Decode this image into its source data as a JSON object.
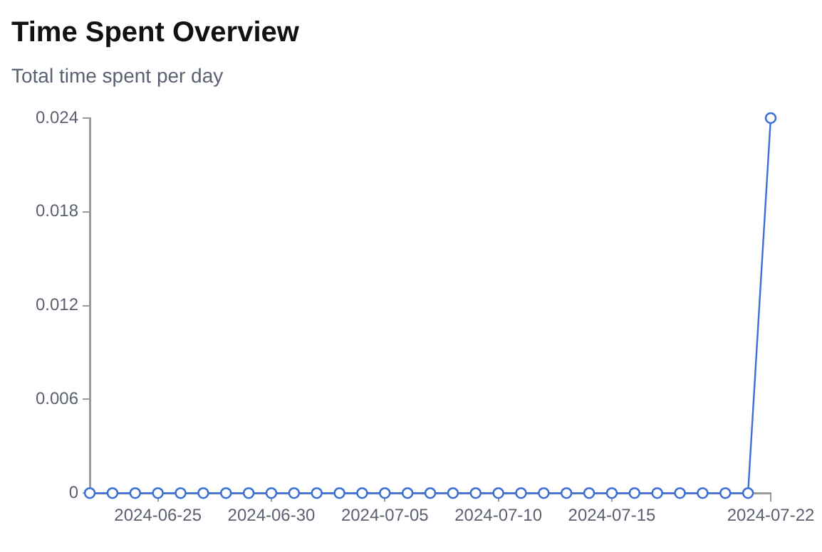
{
  "chart_data": {
    "type": "line",
    "title": "Time Spent Overview",
    "subtitle": "Total time spent per day",
    "x": [
      "2024-06-22",
      "2024-06-23",
      "2024-06-24",
      "2024-06-25",
      "2024-06-26",
      "2024-06-27",
      "2024-06-28",
      "2024-06-29",
      "2024-06-30",
      "2024-07-01",
      "2024-07-02",
      "2024-07-03",
      "2024-07-04",
      "2024-07-05",
      "2024-07-06",
      "2024-07-07",
      "2024-07-08",
      "2024-07-09",
      "2024-07-10",
      "2024-07-11",
      "2024-07-12",
      "2024-07-13",
      "2024-07-14",
      "2024-07-15",
      "2024-07-16",
      "2024-07-17",
      "2024-07-18",
      "2024-07-19",
      "2024-07-20",
      "2024-07-21",
      "2024-07-22"
    ],
    "series": [
      {
        "color": "#3d6fd6",
        "values": [
          0,
          0,
          0,
          0,
          0,
          0,
          0,
          0,
          0,
          0,
          0,
          0,
          0,
          0,
          0,
          0,
          0,
          0,
          0,
          0,
          0,
          0,
          0,
          0,
          0,
          0,
          0,
          0,
          0,
          0,
          0.024
        ]
      }
    ],
    "xlim": [
      "2024-06-22",
      "2024-07-22"
    ],
    "xticks": [
      {
        "value": "2024-06-25",
        "label": "2024-06-25"
      },
      {
        "value": "2024-06-30",
        "label": "2024-06-30"
      },
      {
        "value": "2024-07-05",
        "label": "2024-07-05"
      },
      {
        "value": "2024-07-10",
        "label": "2024-07-10"
      },
      {
        "value": "2024-07-15",
        "label": "2024-07-15"
      },
      {
        "value": "2024-07-22",
        "label": "2024-07-22"
      }
    ],
    "ylim": [
      0,
      0.024
    ],
    "yticks": [
      0,
      0.006,
      0.012,
      0.018,
      0.024
    ],
    "grid": false,
    "legend": false,
    "marker": "circle",
    "line_style": "solid"
  }
}
